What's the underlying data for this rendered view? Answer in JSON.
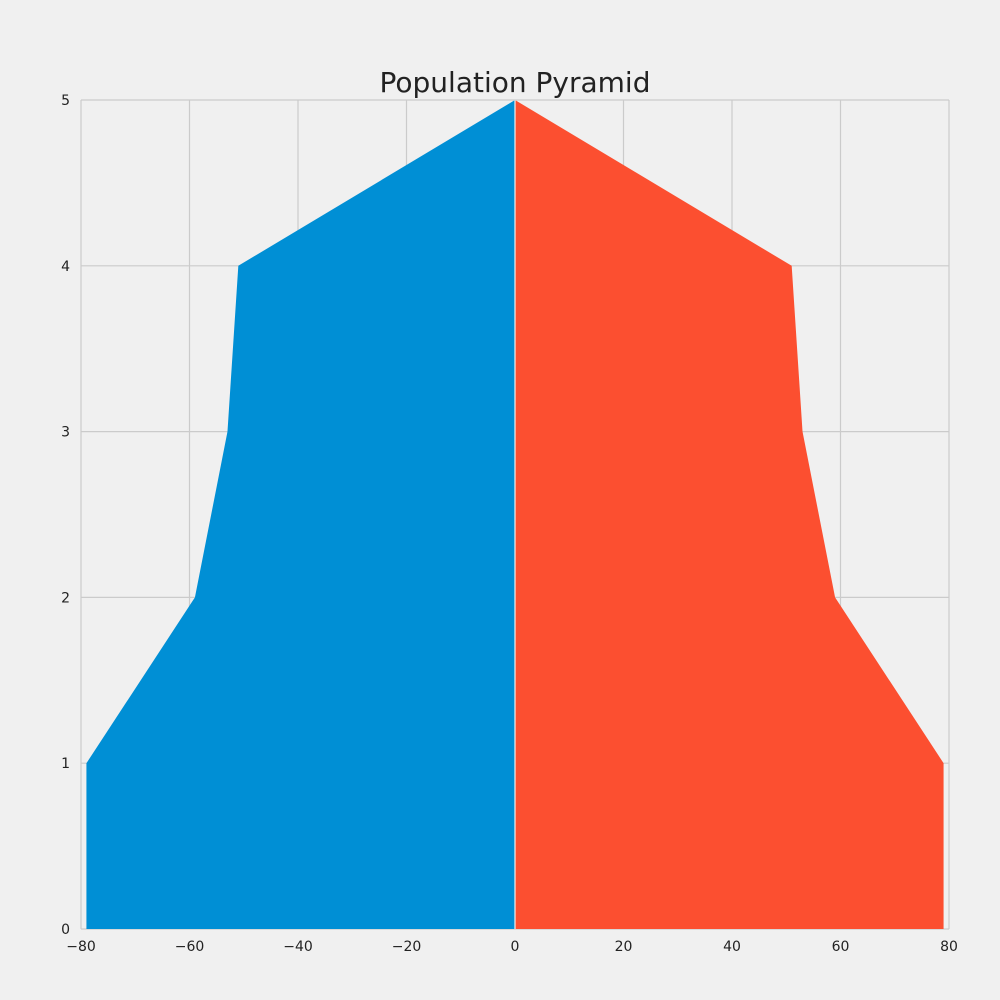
{
  "chart_data": {
    "type": "area",
    "title": "Population Pyramid",
    "xlabel": "",
    "ylabel": "",
    "xlim": [
      -80,
      80
    ],
    "ylim": [
      0,
      5
    ],
    "x_ticks": [
      -80,
      -60,
      -40,
      -20,
      0,
      20,
      40,
      60,
      80
    ],
    "y_ticks": [
      0,
      1,
      2,
      3,
      4,
      5
    ],
    "x_tick_labels": [
      "−80",
      "−60",
      "−40",
      "−20",
      "0",
      "20",
      "40",
      "60",
      "80"
    ],
    "y_tick_labels": [
      "0",
      "1",
      "2",
      "3",
      "4",
      "5"
    ],
    "grid": true,
    "legend": "none",
    "series": [
      {
        "color": "#008fd5",
        "points": [
          {
            "y": 0,
            "x": -79
          },
          {
            "y": 1,
            "x": -79
          },
          {
            "y": 2,
            "x": -59
          },
          {
            "y": 3,
            "x": -53
          },
          {
            "y": 4,
            "x": -51
          },
          {
            "y": 5,
            "x": 0
          }
        ]
      },
      {
        "color": "#fc4f30",
        "points": [
          {
            "y": 0,
            "x": 79
          },
          {
            "y": 1,
            "x": 79
          },
          {
            "y": 2,
            "x": 59
          },
          {
            "y": 3,
            "x": 53
          },
          {
            "y": 4,
            "x": 51
          },
          {
            "y": 5,
            "x": 0
          }
        ]
      }
    ]
  }
}
